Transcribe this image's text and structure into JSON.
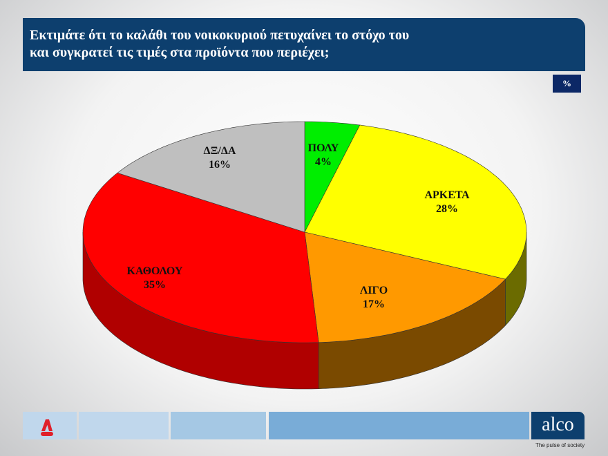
{
  "header": {
    "title": "Εκτιμάτε ότι το καλάθι του νοικοκυριού πετυχαίνει το στόχο του\nκαι συγκρατεί τις τιμές στα προϊόντα που περιέχει;",
    "unit": "%"
  },
  "chart_data": {
    "type": "pie",
    "style": "3d",
    "categories": [
      "ΠΟΛΥ",
      "ΑΡΚΕΤΑ",
      "ΛΙΓΟ",
      "ΚΑΘΟΛΟΥ",
      "ΔΞ/ΔΑ"
    ],
    "values": [
      4,
      28,
      17,
      35,
      16
    ],
    "labels": [
      "4%",
      "28%",
      "17%",
      "35%",
      "16%"
    ],
    "colors": [
      "#00ee00",
      "#ffff00",
      "#ff9900",
      "#ff0000",
      "#bfbfbf"
    ],
    "side_colors": [
      "#00a000",
      "#6b6b00",
      "#7a4a00",
      "#b00000",
      "#808080"
    ]
  },
  "footer": {
    "brand": "alco",
    "tagline": "The pulse of society",
    "channel_logo": "NEWS"
  }
}
